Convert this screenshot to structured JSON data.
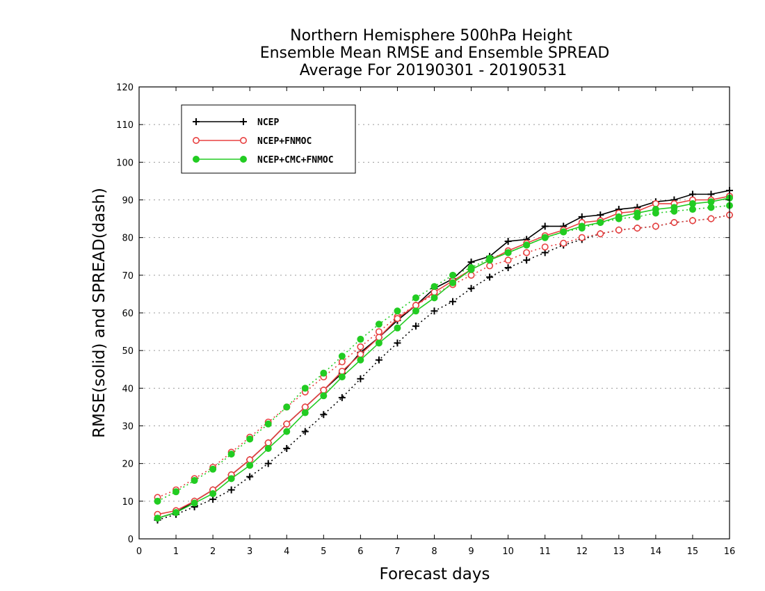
{
  "chart_data": {
    "type": "line",
    "title": [
      "Northern Hemisphere 500hPa Height",
      "Ensemble Mean RMSE and Ensemble SPREAD",
      "Average For 20190301 - 20190531"
    ],
    "xlabel": "Forecast days",
    "ylabel": "RMSE(solid) and SPREAD(dash)",
    "xlim": [
      0,
      16
    ],
    "ylim": [
      0,
      120
    ],
    "xticks": [
      "0",
      "1",
      "2",
      "3",
      "4",
      "5",
      "6",
      "7",
      "8",
      "9",
      "10",
      "11",
      "12",
      "13",
      "14",
      "15",
      "16"
    ],
    "yticks": [
      "0",
      "10",
      "20",
      "30",
      "40",
      "50",
      "60",
      "70",
      "80",
      "90",
      "100",
      "110",
      "120"
    ],
    "grid": true,
    "legend_position": "top-left",
    "x": [
      0.5,
      1,
      1.5,
      2,
      2.5,
      3,
      3.5,
      4,
      4.5,
      5,
      5.5,
      6,
      6.5,
      7,
      7.5,
      8,
      8.5,
      9,
      9.5,
      10,
      10.5,
      11,
      11.5,
      12,
      12.5,
      13,
      13.5,
      14,
      14.5,
      15,
      15.5,
      16
    ],
    "series": [
      {
        "name": "NCEP",
        "color": "#000000",
        "marker": "plus",
        "rmse": [
          5.5,
          7,
          10,
          13,
          17,
          21,
          25.5,
          30.5,
          35,
          39.5,
          44,
          49.5,
          53.5,
          58,
          62,
          66.5,
          69,
          73.5,
          75,
          79,
          79.5,
          83,
          83,
          85.5,
          86,
          87.5,
          88,
          89.5,
          90,
          91.5,
          91.5,
          92.5
        ],
        "spread": [
          5,
          6.5,
          8.5,
          10.5,
          13,
          16.5,
          20,
          24,
          28.5,
          33,
          37.5,
          42.5,
          47.5,
          52,
          56.5,
          60.5,
          63,
          66.5,
          69.5,
          72,
          74,
          76,
          78,
          79.5,
          81,
          82,
          82.5,
          83,
          84,
          84.5,
          85,
          86
        ]
      },
      {
        "name": "NCEP+FNMOC",
        "color": "#e84040",
        "marker": "open-circle",
        "rmse": [
          6.5,
          7.5,
          10,
          13,
          17,
          21,
          25.5,
          30.5,
          35,
          39.5,
          44.5,
          49,
          53.5,
          58.5,
          62,
          65.5,
          68.5,
          71.5,
          74,
          76.5,
          78.5,
          80.5,
          82,
          84,
          84.5,
          86.5,
          87,
          89,
          89,
          90,
          90,
          91
        ],
        "spread": [
          11,
          13,
          16,
          19,
          23,
          27,
          31,
          35,
          39,
          43,
          47,
          51,
          55,
          59,
          62,
          65,
          67.5,
          70,
          72.5,
          74,
          76,
          77.5,
          78.5,
          80,
          81,
          82,
          82.5,
          83,
          84,
          84.5,
          85,
          86
        ]
      },
      {
        "name": "NCEP+CMC+FNMOC",
        "color": "#22cc22",
        "marker": "filled-circle",
        "rmse": [
          5.5,
          7,
          9.5,
          12,
          16,
          19.5,
          24,
          28.5,
          33.5,
          38,
          43,
          47.5,
          52,
          56,
          60.5,
          64,
          68,
          71.5,
          74,
          76,
          78,
          80,
          81.5,
          83,
          84,
          85.5,
          86.5,
          87.5,
          88,
          89,
          89.5,
          90.5
        ],
        "spread": [
          10,
          12.5,
          15.5,
          18.5,
          22.5,
          26.5,
          30.5,
          35,
          40,
          44,
          48.5,
          53,
          57,
          60.5,
          64,
          67,
          70,
          72,
          74.5,
          76,
          78,
          80,
          81.5,
          82.5,
          84,
          85,
          85.5,
          86.5,
          87,
          87.5,
          88,
          88.5
        ]
      }
    ]
  }
}
